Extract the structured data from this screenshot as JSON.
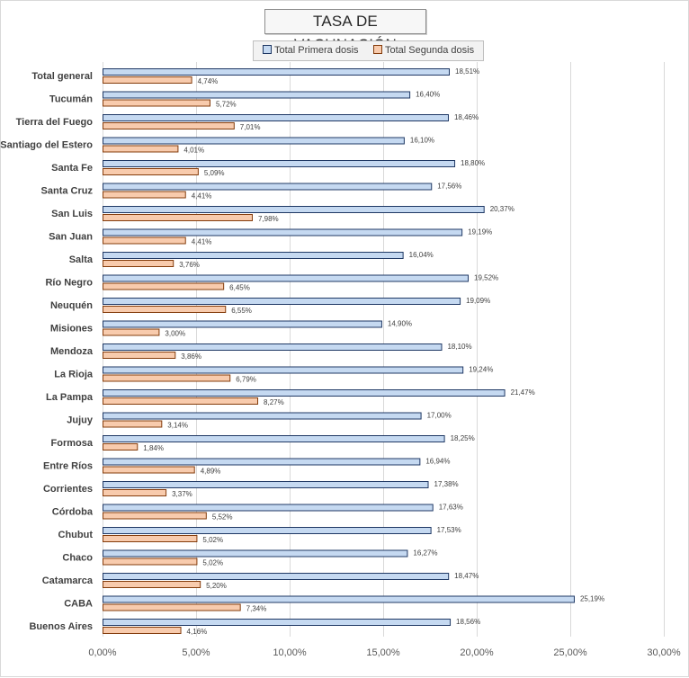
{
  "chart_data": {
    "type": "bar",
    "orientation": "horizontal",
    "title": "TASA DE VACUNACIÓN",
    "xlabel": "",
    "ylabel": "",
    "xlim": [
      0,
      30
    ],
    "x_ticks": [
      0,
      5,
      10,
      15,
      20,
      25,
      30
    ],
    "x_tick_labels": [
      "0,00%",
      "5,00%",
      "10,00%",
      "15,00%",
      "20,00%",
      "25,00%",
      "30,00%"
    ],
    "grid": "vertical",
    "legend_position": "top",
    "categories": [
      "Total general",
      "Tucumán",
      "Tierra del Fuego",
      "Santiago del Estero",
      "Santa Fe",
      "Santa Cruz",
      "San Luis",
      "San Juan",
      "Salta",
      "Río Negro",
      "Neuquén",
      "Misiones",
      "Mendoza",
      "La Rioja",
      "La Pampa",
      "Jujuy",
      "Formosa",
      "Entre Ríos",
      "Corrientes",
      "Córdoba",
      "Chubut",
      "Chaco",
      "Catamarca",
      "CABA",
      "Buenos Aires"
    ],
    "series": [
      {
        "name": "Total Primera dosis",
        "color": "#c5d9f1",
        "edge_color": "#1f3864",
        "values": [
          18.51,
          16.4,
          18.46,
          16.1,
          18.8,
          17.56,
          20.37,
          19.19,
          16.04,
          19.52,
          19.09,
          14.9,
          18.1,
          19.24,
          21.47,
          17.0,
          18.25,
          16.94,
          17.38,
          17.63,
          17.53,
          16.27,
          18.47,
          25.19,
          18.56
        ],
        "labels": [
          "18,51%",
          "16,40%",
          "18,46%",
          "16,10%",
          "18,80%",
          "17,56%",
          "20,37%",
          "19,19%",
          "16,04%",
          "19,52%",
          "19,09%",
          "14,90%",
          "18,10%",
          "19,24%",
          "21,47%",
          "17,00%",
          "18,25%",
          "16,94%",
          "17,38%",
          "17,63%",
          "17,53%",
          "16,27%",
          "18,47%",
          "25,19%",
          "18,56%"
        ]
      },
      {
        "name": "Total Segunda dosis",
        "color": "#f8cbad",
        "edge_color": "#843c0c",
        "values": [
          4.74,
          5.72,
          7.01,
          4.01,
          5.09,
          4.41,
          7.98,
          4.41,
          3.76,
          6.45,
          6.55,
          3.0,
          3.86,
          6.79,
          8.27,
          3.14,
          1.84,
          4.89,
          3.37,
          5.52,
          5.02,
          5.02,
          5.2,
          7.34,
          4.16
        ],
        "labels": [
          "4,74%",
          "5,72%",
          "7,01%",
          "4,01%",
          "5,09%",
          "4,41%",
          "7,98%",
          "4,41%",
          "3,76%",
          "6,45%",
          "6,55%",
          "3,00%",
          "3,86%",
          "6,79%",
          "8,27%",
          "3,14%",
          "1,84%",
          "4,89%",
          "3,37%",
          "5,52%",
          "5,02%",
          "5,02%",
          "5,20%",
          "7,34%",
          "4,16%"
        ]
      }
    ]
  }
}
